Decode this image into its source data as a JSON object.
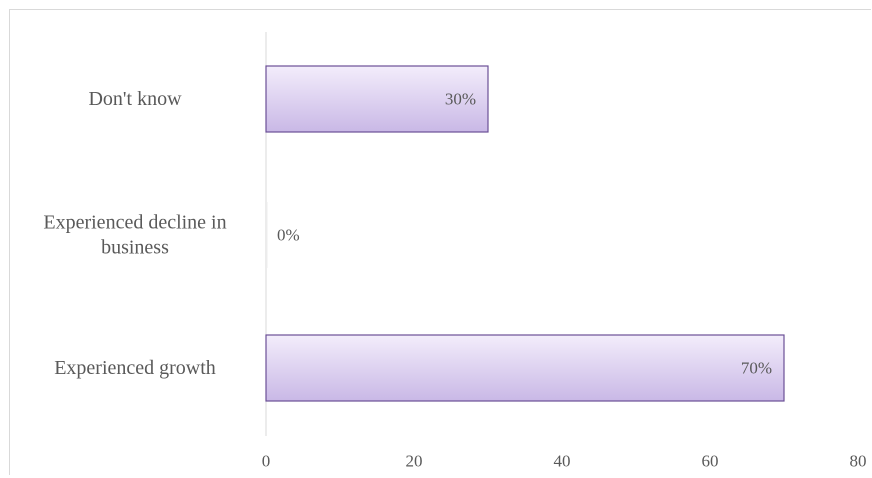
{
  "chart_data": {
    "type": "bar",
    "orientation": "horizontal",
    "categories": [
      "Don't know",
      "Experienced decline in business",
      "Experienced growth"
    ],
    "category_label_lines": [
      [
        "Don't know"
      ],
      [
        "Experienced decline in",
        "business"
      ],
      [
        "Experienced growth"
      ]
    ],
    "values": [
      30,
      0,
      70
    ],
    "data_labels": [
      "30%",
      "0%",
      "70%"
    ],
    "xlim": [
      0,
      80
    ],
    "x_ticks": [
      0,
      20,
      40,
      60,
      80
    ],
    "title": "",
    "xlabel": "",
    "ylabel": "",
    "grid": false,
    "legend": "none",
    "colors": {
      "bar_fill_light": "#f3edfb",
      "bar_fill_dark": "#c9b8e6",
      "bar_border": "#6b4f96",
      "axis_line": "#d9d9d9",
      "text": "#595959"
    }
  }
}
